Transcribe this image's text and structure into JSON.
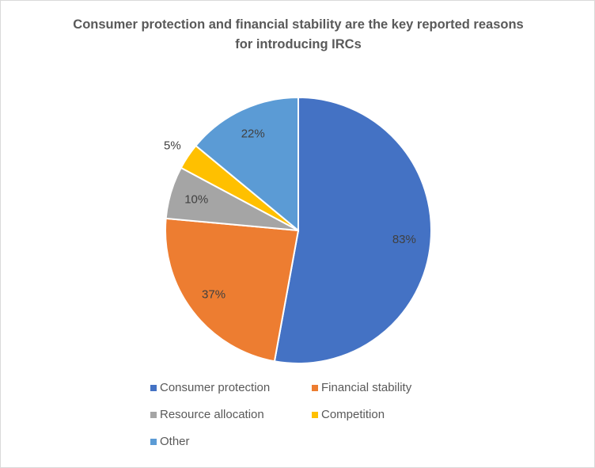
{
  "chart_data": {
    "type": "pie",
    "title": "Consumer protection and financial stability are the key reported reasons for introducing IRCs",
    "categories": [
      "Consumer protection",
      "Financial stability",
      "Resource allocation",
      "Competition",
      "Other"
    ],
    "values": [
      83,
      37,
      10,
      5,
      22
    ],
    "value_labels": [
      "83%",
      "37%",
      "10%",
      "5%",
      "22%"
    ],
    "colors": [
      "#4472c4",
      "#ed7d31",
      "#a5a5a5",
      "#ffc000",
      "#5b9bd5"
    ],
    "legend": "bottom"
  }
}
